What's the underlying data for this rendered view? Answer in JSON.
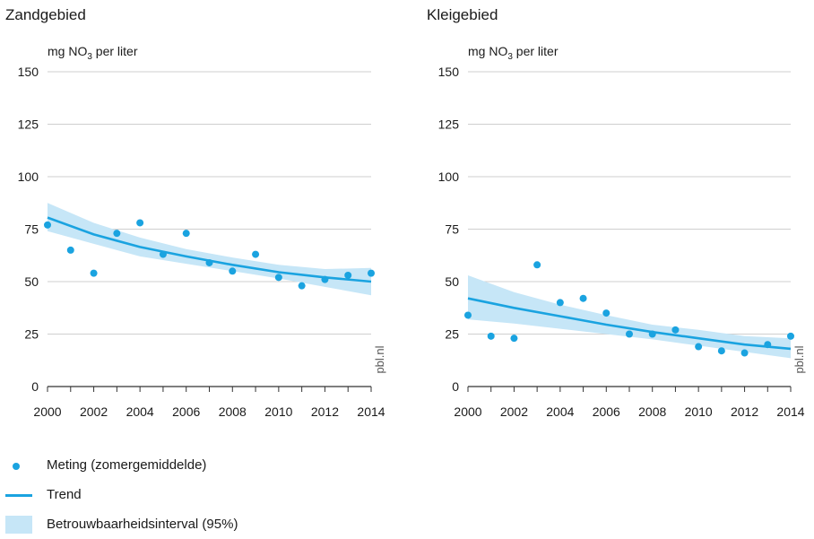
{
  "colors": {
    "point": "#1aa3e0",
    "trend": "#1aa3e0",
    "band": "#c6e6f7",
    "grid": "#cfcfcf",
    "axis": "#333333",
    "text": "#1a1a1a",
    "watermark": "#555555"
  },
  "watermark": "pbl.nl",
  "legend": {
    "point_label": "Meting (zomergemiddelde)",
    "line_label": "Trend",
    "band_label": "Betrouwbaarheidsinterval (95%)"
  },
  "chart_data": [
    {
      "type": "scatter",
      "title": "Zandgebied",
      "ylabel": "mg NO₃ per liter",
      "ylim": [
        0,
        150
      ],
      "yticks": [
        0,
        25,
        50,
        75,
        100,
        125,
        150
      ],
      "xlim": [
        2000,
        2014
      ],
      "xticks": [
        2000,
        2002,
        2004,
        2006,
        2008,
        2010,
        2012,
        2014
      ],
      "grid": true,
      "points": {
        "x": [
          2000,
          2001,
          2002,
          2003,
          2004,
          2005,
          2006,
          2007,
          2008,
          2009,
          2010,
          2011,
          2012,
          2013,
          2014
        ],
        "y": [
          77,
          65,
          54,
          73,
          78,
          63,
          73,
          59,
          55,
          63,
          52,
          48,
          51,
          53,
          54
        ]
      },
      "trend": {
        "x": [
          2000,
          2002,
          2004,
          2006,
          2008,
          2010,
          2012,
          2014
        ],
        "y": [
          80.5,
          72.5,
          66.5,
          62,
          58,
          54.5,
          52,
          50
        ]
      },
      "band": {
        "x": [
          2000,
          2002,
          2004,
          2006,
          2008,
          2010,
          2012,
          2014
        ],
        "lower": [
          74,
          68,
          62,
          58.5,
          55,
          51.5,
          47.5,
          43.5
        ],
        "upper": [
          87.5,
          78,
          71,
          65.5,
          61.5,
          58,
          56,
          56.5
        ]
      }
    },
    {
      "type": "scatter",
      "title": "Kleigebied",
      "ylabel": "mg NO₃ per liter",
      "ylim": [
        0,
        150
      ],
      "yticks": [
        0,
        25,
        50,
        75,
        100,
        125,
        150
      ],
      "xlim": [
        2000,
        2014
      ],
      "xticks": [
        2000,
        2002,
        2004,
        2006,
        2008,
        2010,
        2012,
        2014
      ],
      "grid": true,
      "points": {
        "x": [
          2000,
          2001,
          2002,
          2003,
          2004,
          2005,
          2006,
          2007,
          2008,
          2009,
          2010,
          2011,
          2012,
          2013,
          2014
        ],
        "y": [
          34,
          24,
          23,
          58,
          40,
          42,
          35,
          25,
          25,
          27,
          19,
          17,
          16,
          20,
          24
        ]
      },
      "trend": {
        "x": [
          2000,
          2002,
          2004,
          2006,
          2008,
          2010,
          2012,
          2014
        ],
        "y": [
          42,
          37.5,
          33.5,
          29.5,
          26,
          23,
          20,
          18
        ]
      },
      "band": {
        "x": [
          2000,
          2002,
          2004,
          2006,
          2008,
          2010,
          2012,
          2014
        ],
        "lower": [
          32,
          30,
          27.5,
          25,
          22.5,
          19.5,
          16.5,
          13.5
        ],
        "upper": [
          53,
          45,
          39,
          34,
          29.5,
          27,
          24,
          23
        ]
      }
    }
  ]
}
